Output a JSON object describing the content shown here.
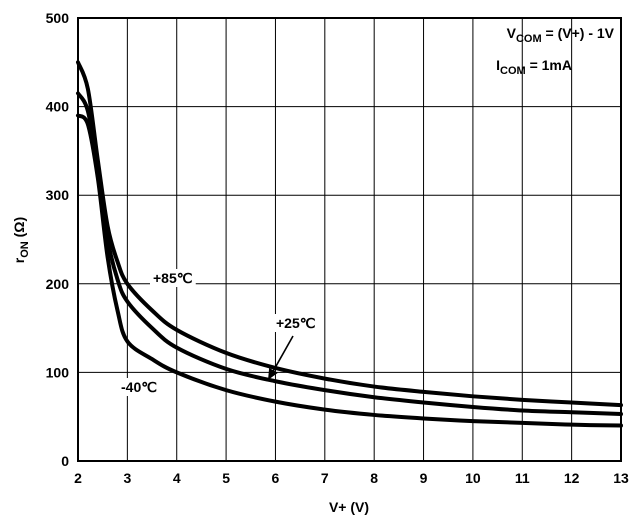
{
  "chart_data": {
    "type": "line",
    "xlabel": "V+ (V)",
    "ylabel": {
      "main": "r",
      "sub": "ON",
      "unit": " (Ω)"
    },
    "xlim": [
      2,
      13
    ],
    "ylim": [
      0,
      500
    ],
    "xticks": [
      "2",
      "3",
      "4",
      "5",
      "6",
      "7",
      "8",
      "9",
      "10",
      "11",
      "12",
      "13"
    ],
    "yticks": [
      "0",
      "100",
      "200",
      "300",
      "400",
      "500"
    ],
    "grid": true,
    "conditions": [
      {
        "main": "V",
        "sub": "COM",
        "rest": " = (V+) - 1V"
      },
      {
        "main": "I",
        "sub": "COM",
        "rest": " = 1mA"
      }
    ],
    "x": [
      2.0,
      2.2,
      2.4,
      2.6,
      2.8,
      3.0,
      3.5,
      4.0,
      5.0,
      6.0,
      7.0,
      8.0,
      9.0,
      10.0,
      11.0,
      12.0,
      13.0
    ],
    "series": [
      {
        "name": "+85℃",
        "values": [
          450,
          420,
          340,
          265,
          225,
          200,
          170,
          148,
          122,
          105,
          93,
          84,
          78,
          73,
          69,
          66,
          63
        ]
      },
      {
        "name": "+25℃",
        "values": [
          415,
          395,
          330,
          250,
          205,
          180,
          150,
          128,
          104,
          90,
          80,
          72,
          66,
          61,
          57,
          55,
          53
        ]
      },
      {
        "name": "-40℃",
        "values": [
          390,
          380,
          320,
          230,
          170,
          135,
          115,
          100,
          80,
          67,
          58,
          52,
          48,
          45,
          43,
          41,
          40
        ]
      }
    ],
    "labels": [
      {
        "series": 0,
        "text": "+85℃"
      },
      {
        "series": 1,
        "text": "+25℃"
      },
      {
        "series": 2,
        "text": "-40℃"
      }
    ]
  }
}
